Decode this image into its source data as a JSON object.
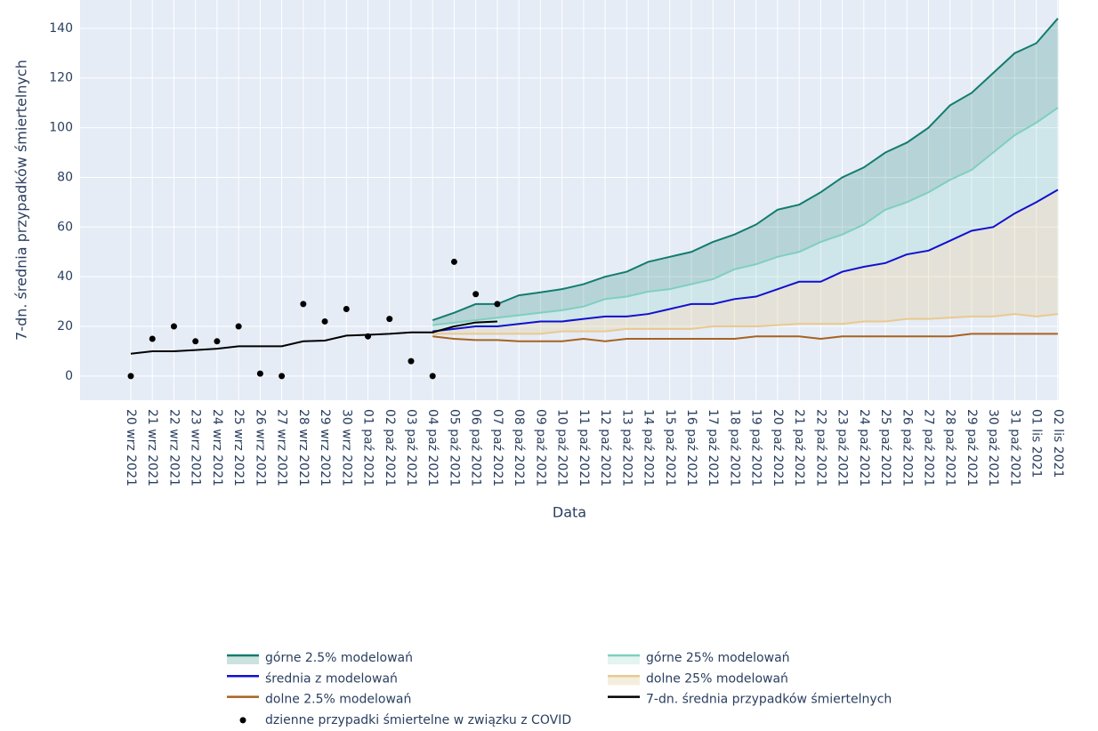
{
  "chart_data": {
    "type": "line",
    "xlabel": "Data",
    "ylabel": "7-dn. średnia przypadków śmiertelnych",
    "categories": [
      "20 wrz 2021",
      "21 wrz 2021",
      "22 wrz 2021",
      "23 wrz 2021",
      "24 wrz 2021",
      "25 wrz 2021",
      "26 wrz 2021",
      "27 wrz 2021",
      "28 wrz 2021",
      "29 wrz 2021",
      "30 wrz 2021",
      "01 paź 2021",
      "02 paź 2021",
      "03 paź 2021",
      "04 paź 2021",
      "05 paź 2021",
      "06 paź 2021",
      "07 paź 2021",
      "08 paź 2021",
      "09 paź 2021",
      "10 paź 2021",
      "11 paź 2021",
      "12 paź 2021",
      "13 paź 2021",
      "14 paź 2021",
      "15 paź 2021",
      "16 paź 2021",
      "17 paź 2021",
      "18 paź 2021",
      "19 paź 2021",
      "20 paź 2021",
      "21 paź 2021",
      "22 paź 2021",
      "23 paź 2021",
      "24 paź 2021",
      "25 paź 2021",
      "26 paź 2021",
      "27 paź 2021",
      "28 paź 2021",
      "29 paź 2021",
      "30 paź 2021",
      "31 paź 2021",
      "01 lis 2021",
      "02 lis 2021"
    ],
    "ylim": [
      -9.7,
      151.4
    ],
    "yticks": [
      0,
      20,
      40,
      60,
      80,
      100,
      120,
      140
    ],
    "grid": true,
    "series": [
      {
        "name": "górne 2.5% modelowań",
        "color": "#127c6e",
        "fill_color": "rgba(18,124,110,0.22)",
        "values": [
          null,
          null,
          null,
          null,
          null,
          null,
          null,
          null,
          null,
          null,
          null,
          null,
          null,
          null,
          22.5,
          25.5,
          29,
          29,
          32.5,
          33.7,
          35,
          37,
          40,
          42,
          46,
          48,
          50,
          54,
          57,
          61,
          67,
          69,
          74,
          80,
          84,
          90,
          94,
          100,
          109,
          114,
          122,
          130,
          134,
          144
        ]
      },
      {
        "name": "górne 25% modelowań",
        "color": "#7fcfbf",
        "fill_color": "rgba(127,207,191,0.22)",
        "values": [
          null,
          null,
          null,
          null,
          null,
          null,
          null,
          null,
          null,
          null,
          null,
          null,
          null,
          null,
          20.5,
          21.5,
          22.5,
          23.5,
          24.5,
          25.5,
          26.5,
          28,
          31,
          32,
          34,
          35,
          37,
          39,
          43,
          45,
          48,
          50,
          54,
          57,
          61,
          67,
          70,
          74,
          79,
          83,
          90,
          97,
          102,
          108
        ]
      },
      {
        "name": "średnia z modelowań",
        "color": "#1010d0",
        "values": [
          null,
          null,
          null,
          null,
          null,
          null,
          null,
          null,
          null,
          null,
          null,
          null,
          null,
          null,
          18,
          19,
          20,
          20,
          21,
          22,
          22,
          23,
          24,
          24,
          25,
          27,
          29,
          29,
          31,
          32,
          35,
          38,
          38,
          42,
          44,
          45.5,
          49,
          50.5,
          54.5,
          58.5,
          60,
          65.5,
          70,
          75
        ]
      },
      {
        "name": "dolne 25% modelowań",
        "color": "#e9c98f",
        "fill_color": "rgba(225,205,160,0.35)",
        "values": [
          null,
          null,
          null,
          null,
          null,
          null,
          null,
          null,
          null,
          null,
          null,
          null,
          null,
          null,
          17,
          17,
          17,
          17,
          17,
          17,
          18,
          18,
          18,
          19,
          19,
          19,
          19,
          20,
          20,
          20,
          20.5,
          21,
          21,
          21,
          22,
          22,
          23,
          23,
          23.5,
          24,
          24,
          25,
          24,
          25
        ]
      },
      {
        "name": "dolne 2.5% modelowań",
        "color": "#a8621f",
        "values": [
          null,
          null,
          null,
          null,
          null,
          null,
          null,
          null,
          null,
          null,
          null,
          null,
          null,
          null,
          16,
          15,
          14.5,
          14.5,
          14,
          14,
          14,
          15,
          14,
          15,
          15,
          15,
          15,
          15,
          15,
          16,
          16,
          16,
          15,
          16,
          16,
          16,
          16,
          16,
          16,
          17,
          17,
          17,
          17,
          17
        ]
      },
      {
        "name": "7-dn. średnia przypadków śmiertelnych",
        "color": "#000000",
        "values": [
          9,
          10,
          10,
          10.5,
          11,
          12,
          12,
          12,
          14,
          14.3,
          16.3,
          16.6,
          17,
          17.6,
          17.6,
          20,
          21.6,
          22,
          null,
          null,
          null,
          null,
          null,
          null,
          null,
          null,
          null,
          null,
          null,
          null,
          null,
          null,
          null,
          null,
          null,
          null,
          null,
          null,
          null,
          null,
          null,
          null,
          null,
          null
        ]
      },
      {
        "name": "dzienne przypadki śmiertelne w związku z COVID",
        "color": "#000000",
        "mode": "markers",
        "values": [
          0,
          15,
          20,
          14,
          14,
          20,
          1,
          0,
          29,
          22,
          27,
          16,
          23,
          6,
          0,
          46,
          33,
          29,
          null,
          null,
          null,
          null,
          null,
          null,
          null,
          null,
          null,
          null,
          null,
          null,
          null,
          null,
          null,
          null,
          null,
          null,
          null,
          null,
          null,
          null,
          null,
          null,
          null,
          null
        ]
      }
    ]
  }
}
